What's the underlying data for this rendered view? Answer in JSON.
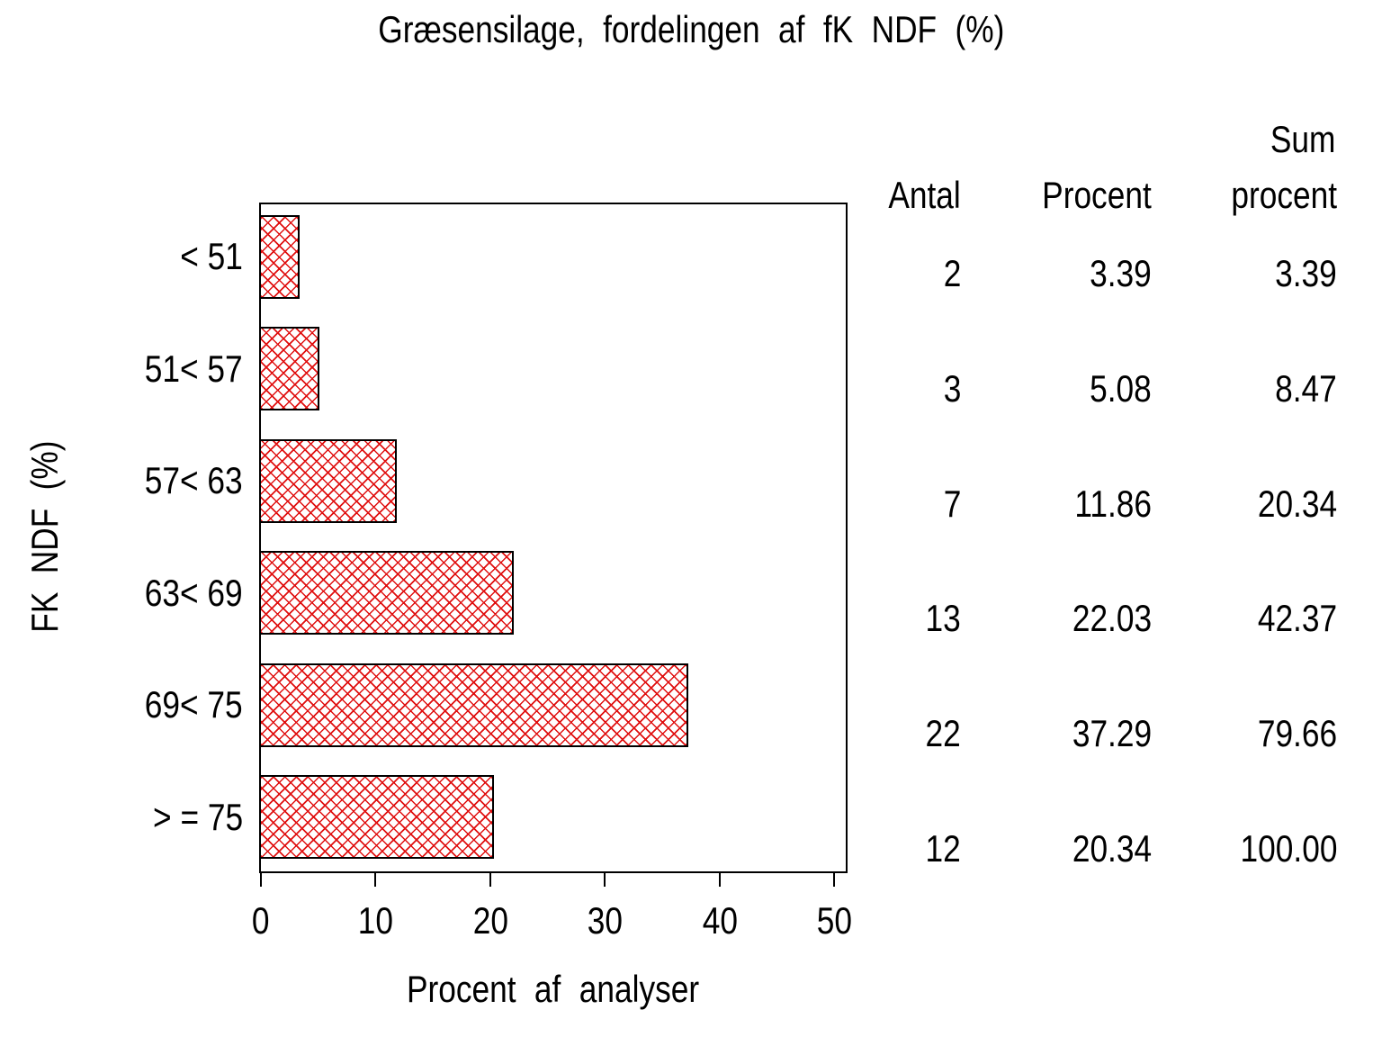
{
  "title": "Græsensilage, fordelingen af fK NDF (%)",
  "colors": {
    "bar_hatch": "#e01010",
    "bar_border": "#000000",
    "axis": "#000000",
    "background": "#ffffff"
  },
  "chart_data": {
    "type": "bar",
    "orientation": "horizontal",
    "title": "Græsensilage, fordelingen af fK NDF (%)",
    "xlabel": "Procent af analyser",
    "ylabel": "FK NDF (%)",
    "categories": [
      "< 51",
      "51< 57",
      "57< 63",
      "63< 69",
      "69< 75",
      "> = 75"
    ],
    "values": [
      3.39,
      5.08,
      11.86,
      22.03,
      37.29,
      20.34
    ],
    "xlim": [
      0,
      50
    ],
    "xtick_labels": [
      "0",
      "10",
      "20",
      "30",
      "40",
      "50"
    ],
    "grid": false,
    "legend": false,
    "bar_style": "red cross-hatch with black border"
  },
  "table": {
    "headers": {
      "antal": "Antal",
      "procent": "Procent",
      "sum_top": "Sum",
      "sum_bottom": "procent"
    },
    "rows": [
      {
        "antal": "2",
        "procent": "3.39",
        "sum": "3.39"
      },
      {
        "antal": "3",
        "procent": "5.08",
        "sum": "8.47"
      },
      {
        "antal": "7",
        "procent": "11.86",
        "sum": "20.34"
      },
      {
        "antal": "13",
        "procent": "22.03",
        "sum": "42.37"
      },
      {
        "antal": "22",
        "procent": "37.29",
        "sum": "79.66"
      },
      {
        "antal": "12",
        "procent": "20.34",
        "sum": "100.00"
      }
    ]
  }
}
